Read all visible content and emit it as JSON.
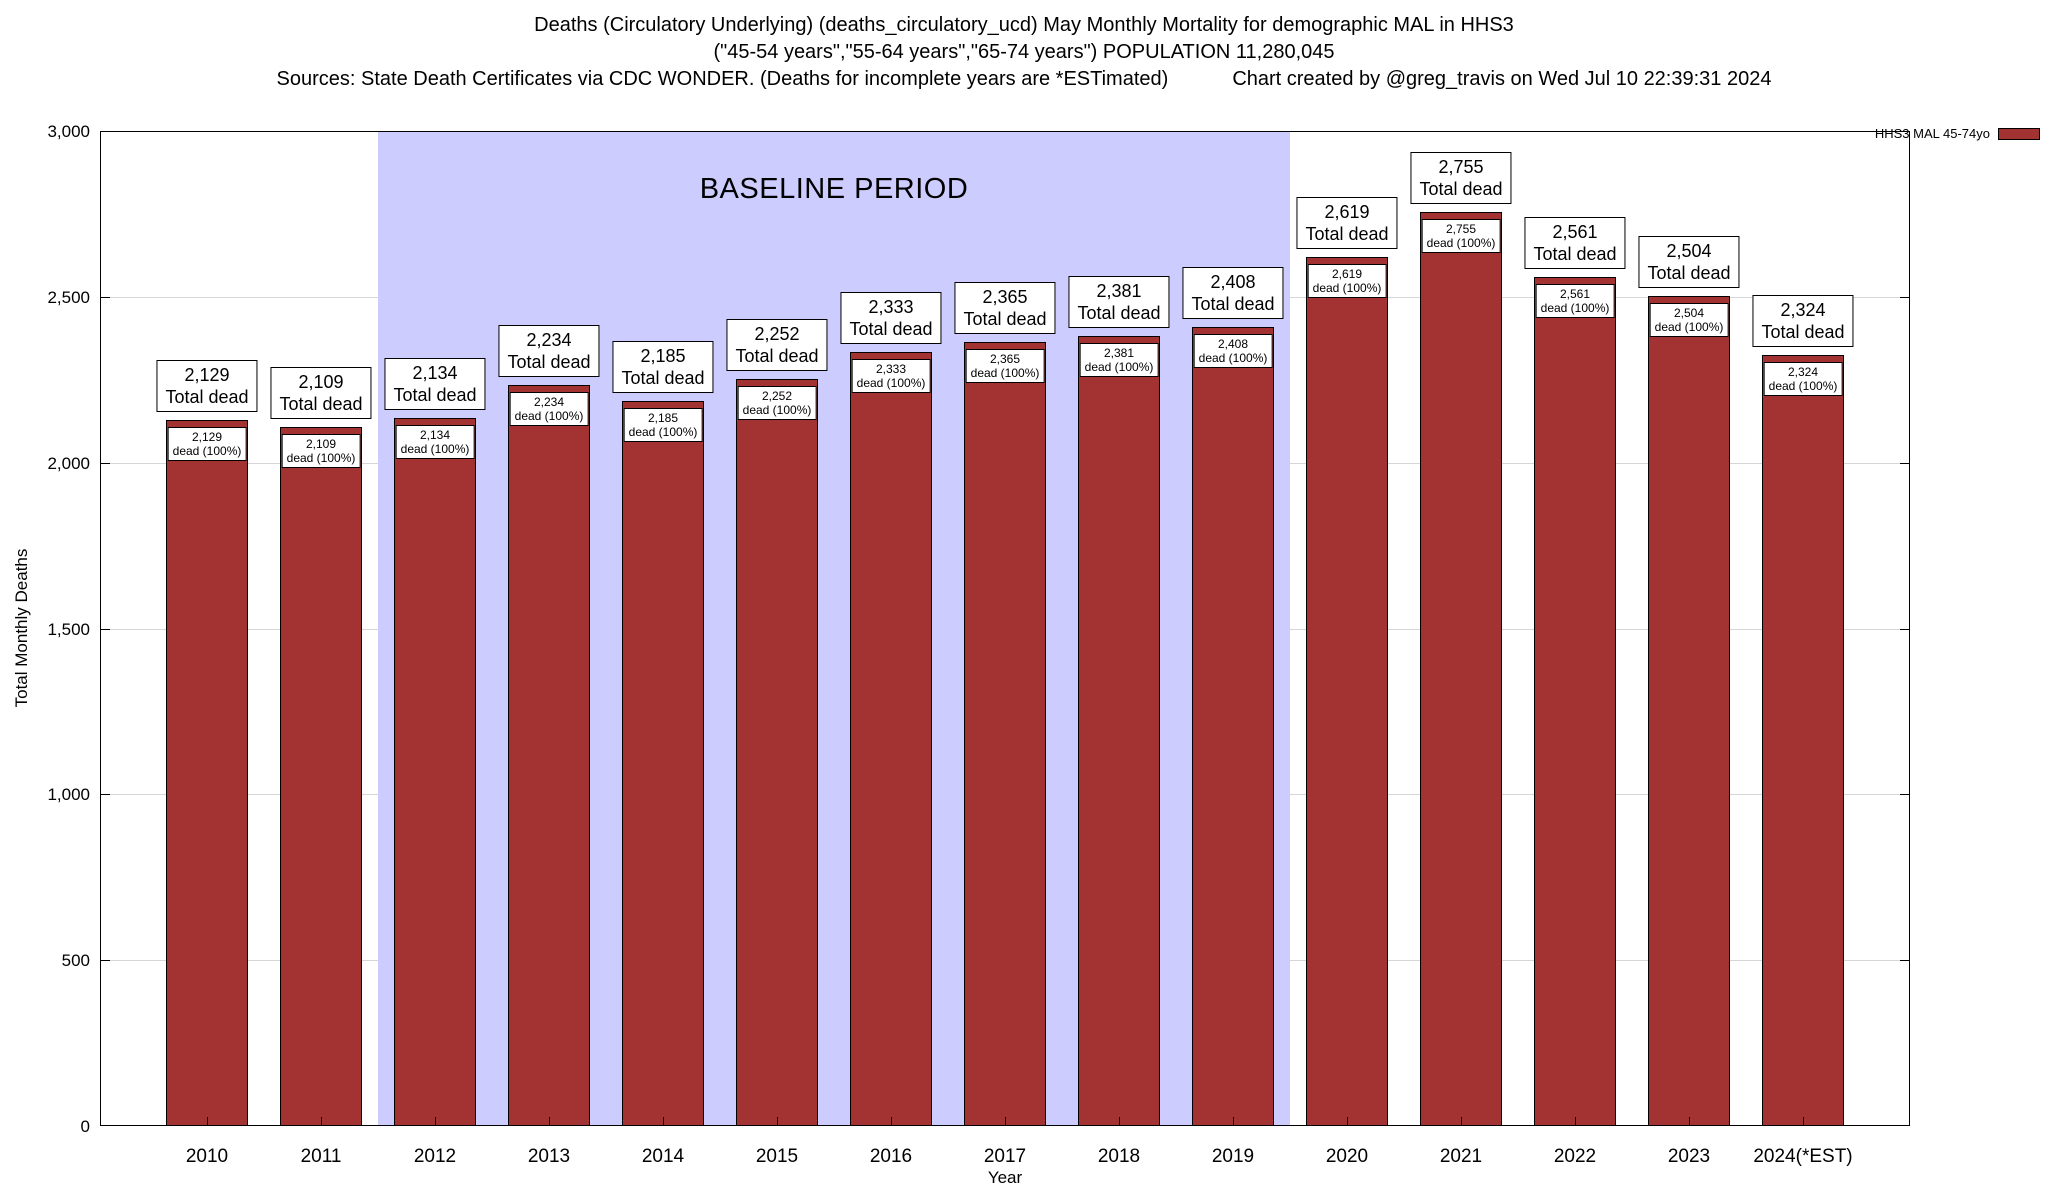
{
  "title": {
    "line1": "Deaths (Circulatory Underlying) (deaths_circulatory_ucd) May Monthly Mortality for demographic MAL in HHS3",
    "line2": "(\"45-54 years\",\"55-64 years\",\"65-74 years\") POPULATION 11,280,045",
    "sources": "Sources: State Death Certificates via CDC WONDER. (Deaths for incomplete years are *ESTimated)",
    "credit": "Chart created by @greg_travis on Wed Jul 10 22:39:31 2024"
  },
  "legend": {
    "label": "HHS3 MAL 45-74yo",
    "color": "#a33232"
  },
  "axes": {
    "ylabel": "Total Monthly Deaths",
    "xlabel": "Year"
  },
  "baseline": {
    "label": "BASELINE PERIOD",
    "start_category": "2012",
    "end_category": "2019",
    "color": "#ccccff"
  },
  "chart_data": {
    "type": "bar",
    "title": "Deaths (Circulatory Underlying) (deaths_circulatory_ucd) May Monthly Mortality for demographic MAL in HHS3",
    "subtitle": "(\"45-54 years\",\"55-64 years\",\"65-74 years\") POPULATION 11,280,045",
    "series_name": "HHS3 MAL 45-74yo",
    "categories": [
      "2010",
      "2011",
      "2012",
      "2013",
      "2014",
      "2015",
      "2016",
      "2017",
      "2018",
      "2019",
      "2020",
      "2021",
      "2022",
      "2023",
      "2024(*EST)"
    ],
    "values": [
      2129,
      2109,
      2134,
      2234,
      2185,
      2252,
      2333,
      2365,
      2381,
      2408,
      2619,
      2755,
      2561,
      2504,
      2324
    ],
    "value_labels": [
      "2,129",
      "2,109",
      "2,134",
      "2,234",
      "2,185",
      "2,252",
      "2,333",
      "2,365",
      "2,381",
      "2,408",
      "2,619",
      "2,755",
      "2,561",
      "2,504",
      "2,324"
    ],
    "outer_label_text": "Total dead",
    "inner_label_text": "dead (100%)",
    "xlabel": "Year",
    "ylabel": "Total Monthly Deaths",
    "ylim": [
      0,
      3000
    ],
    "yticks": [
      {
        "value": 0,
        "label": "0"
      },
      {
        "value": 500,
        "label": "500"
      },
      {
        "value": 1000,
        "label": "1,000"
      },
      {
        "value": 1500,
        "label": "1,500"
      },
      {
        "value": 2000,
        "label": "2,000"
      },
      {
        "value": 2500,
        "label": "2,500"
      },
      {
        "value": 3000,
        "label": "3,000"
      }
    ],
    "bar_color": "#a33232",
    "grid": "horizontal major gridlines on",
    "legend_position": "top-right",
    "baseline_period": {
      "label": "BASELINE PERIOD",
      "from": "2012",
      "to": "2019",
      "fill": "#ccccff"
    }
  }
}
